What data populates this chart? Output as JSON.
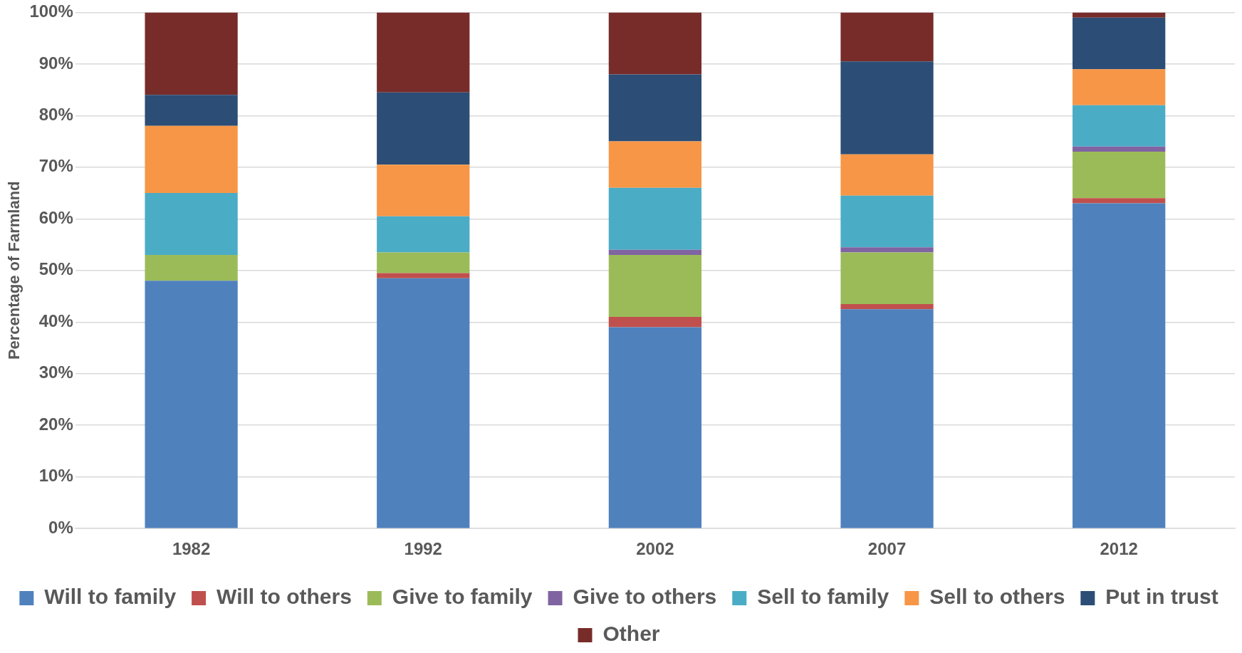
{
  "chart_data": {
    "type": "bar",
    "stacked": true,
    "ylabel": "Percentage of Farmland",
    "categories": [
      "1982",
      "1992",
      "2002",
      "2007",
      "2012"
    ],
    "series": [
      {
        "name": "Will to family",
        "color": "#4f81bd",
        "values": [
          48,
          48.5,
          39,
          42.5,
          63
        ]
      },
      {
        "name": "Will to others",
        "color": "#c0504d",
        "values": [
          0,
          1,
          2,
          1,
          1
        ]
      },
      {
        "name": "Give to family",
        "color": "#9bbb59",
        "values": [
          5,
          4,
          12,
          10,
          9
        ]
      },
      {
        "name": "Give to others",
        "color": "#8064a2",
        "values": [
          0,
          0,
          1,
          1,
          1
        ]
      },
      {
        "name": "Sell to family",
        "color": "#4bacc6",
        "values": [
          12,
          7,
          12,
          10,
          8
        ]
      },
      {
        "name": "Sell to others",
        "color": "#f79646",
        "values": [
          13,
          10,
          9,
          8,
          7
        ]
      },
      {
        "name": "Put in trust",
        "color": "#2c4d75",
        "values": [
          6,
          14,
          13,
          18,
          10
        ]
      },
      {
        "name": "Other",
        "color": "#772c2a",
        "values": [
          16,
          15.5,
          12,
          9.5,
          1
        ]
      }
    ],
    "ylim": [
      0,
      100
    ],
    "yticks": [
      {
        "value": 0,
        "label": "0%"
      },
      {
        "value": 10,
        "label": "10%"
      },
      {
        "value": 20,
        "label": "20%"
      },
      {
        "value": 30,
        "label": "30%"
      },
      {
        "value": 40,
        "label": "40%"
      },
      {
        "value": 50,
        "label": "50%"
      },
      {
        "value": 60,
        "label": "60%"
      },
      {
        "value": 70,
        "label": "70%"
      },
      {
        "value": 80,
        "label": "80%"
      },
      {
        "value": 90,
        "label": "90%"
      },
      {
        "value": 100,
        "label": "100%"
      }
    ],
    "grid": "y",
    "legend": "bottom"
  }
}
